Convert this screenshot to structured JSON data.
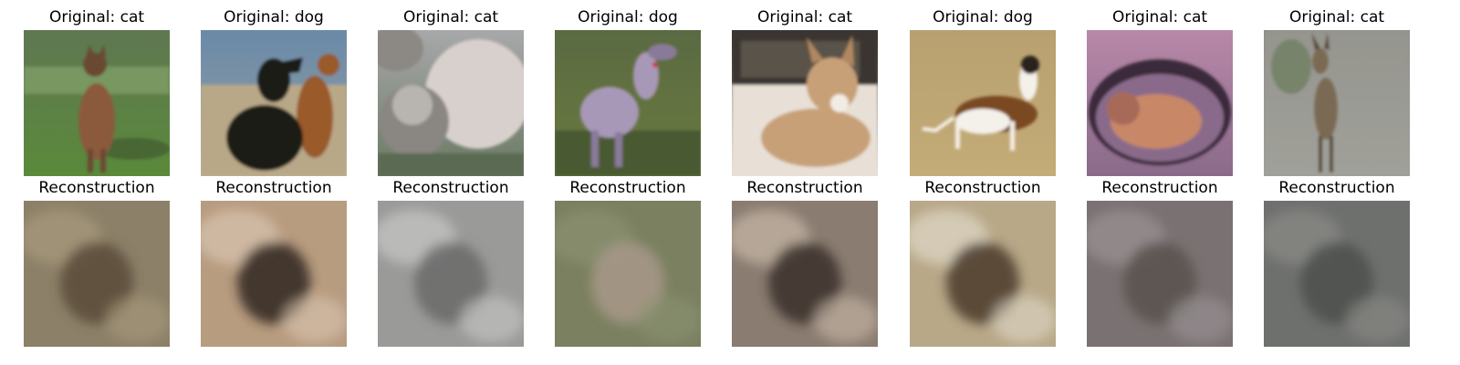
{
  "panels": [
    {
      "original_title": "Original: cat",
      "recon_title": "Reconstruction",
      "original_scene": {
        "bg_top": "#5f7752",
        "bg_bottom": "#5a8a3a",
        "horizon": "#8aa870",
        "subject": "#8b5a3c",
        "subject2": "#6b4a32",
        "shadow": "#3f5a2c",
        "kind": "standing-cat"
      },
      "recon_scene": {
        "bg": "#8c8068",
        "subject": "#5a4a3a",
        "tone": "#a89a7c"
      }
    },
    {
      "original_title": "Original: dog",
      "recon_title": "Reconstruction",
      "original_scene": {
        "bg_top": "#6a8aa8",
        "bg_bottom": "#c8b89a",
        "horizon": "#b8a888",
        "subject": "#1c1a18",
        "subject2": "#9a5a2c",
        "shadow": "#8a7a62",
        "kind": "two-dogs"
      },
      "recon_scene": {
        "bg": "#b89c80",
        "subject": "#2e241c",
        "tone": "#d8c4b0"
      }
    },
    {
      "original_title": "Original: cat",
      "recon_title": "Reconstruction",
      "original_scene": {
        "bg_top": "#a8a8aa",
        "bg_bottom": "#6a7a62",
        "horizon": "#c0bcb8",
        "subject": "#d8d0cc",
        "subject2": "#8a8682",
        "shadow": "#5a6a52",
        "kind": "fluffy-cats"
      },
      "recon_scene": {
        "bg": "#9a9a98",
        "subject": "#6a6a6a",
        "tone": "#c8c8c6"
      }
    },
    {
      "original_title": "Original: dog",
      "recon_title": "Reconstruction",
      "original_scene": {
        "bg_top": "#5a6a42",
        "bg_bottom": "#6a7a3e",
        "horizon": "#7a8a52",
        "subject": "#a898b8",
        "subject2": "#8a7a9a",
        "shadow": "#4a5a32",
        "kind": "running-dog"
      },
      "recon_scene": {
        "bg": "#7a8060",
        "subject": "#a89888",
        "tone": "#8a9270"
      }
    },
    {
      "original_title": "Original: cat",
      "recon_title": "Reconstruction",
      "original_scene": {
        "bg_top": "#3a3430",
        "bg_bottom": "#e8e0d6",
        "horizon": "#d8c8b4",
        "subject": "#c8a078",
        "subject2": "#b08860",
        "shadow": "#7a6a5a",
        "kind": "lying-cat"
      },
      "recon_scene": {
        "bg": "#8a7c70",
        "subject": "#3a302a",
        "tone": "#c8b8a8"
      }
    },
    {
      "original_title": "Original: dog",
      "recon_title": "Reconstruction",
      "original_scene": {
        "bg_top": "#b8a070",
        "bg_bottom": "#c4ac78",
        "horizon": "#a89462",
        "subject": "#f4f0ea",
        "subject2": "#7a4a24",
        "shadow": "#8a7a52",
        "kind": "white-brown-dog"
      },
      "recon_scene": {
        "bg": "#b8a888",
        "subject": "#4a3a2c",
        "tone": "#e0d8c8"
      }
    },
    {
      "original_title": "Original: cat",
      "recon_title": "Reconstruction",
      "original_scene": {
        "bg_top": "#b888a8",
        "bg_bottom": "#8a6a8a",
        "horizon": "#6a4a6a",
        "subject": "#c88868",
        "subject2": "#a86a58",
        "shadow": "#3a2a3a",
        "kind": "cat-in-hole"
      },
      "recon_scene": {
        "bg": "#7a7272",
        "subject": "#5a524e",
        "tone": "#9a9294"
      }
    },
    {
      "original_title": "Original: cat",
      "recon_title": "Reconstruction",
      "original_scene": {
        "bg_top": "#8a8a84",
        "bg_bottom": "#a0a09a",
        "horizon": "#7a8a6a",
        "subject": "#7a6a52",
        "subject2": "#5a4a3a",
        "shadow": "#6a7a5a",
        "kind": "serval"
      },
      "recon_scene": {
        "bg": "#6e706e",
        "subject": "#4e504e",
        "tone": "#8a8a86"
      }
    }
  ]
}
